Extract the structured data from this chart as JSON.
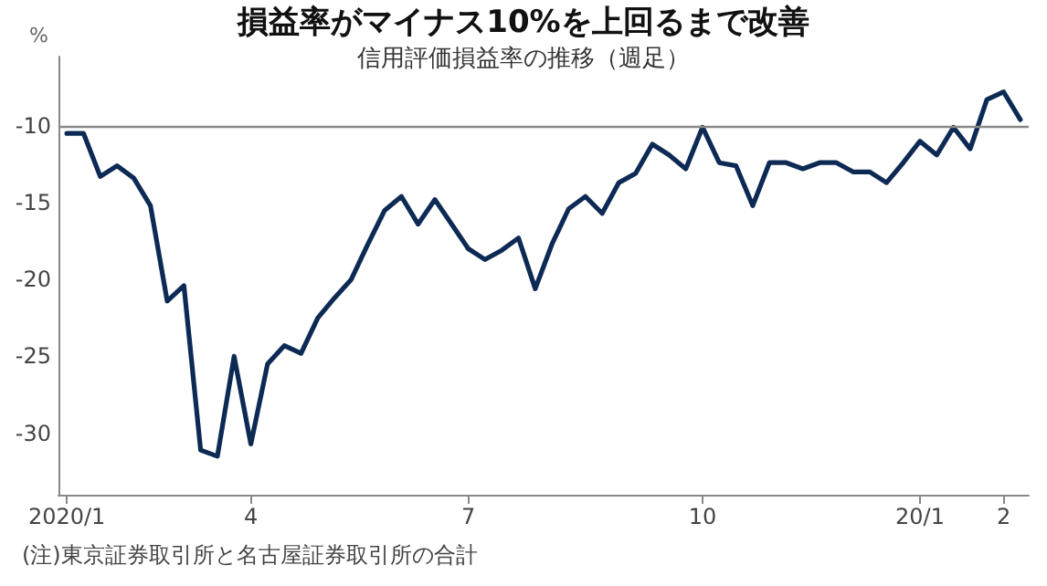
{
  "chart_data": {
    "type": "line",
    "title": "損益率がマイナス10%を上回るまで改善",
    "subtitle": "信用評価損益率の推移（週足）",
    "ylabel": "%",
    "annotations": [
      "(注)東京証券取引所と名古屋証券取引所の合計"
    ],
    "categories": [
      "2020/1",
      null,
      null,
      null,
      null,
      null,
      null,
      null,
      null,
      null,
      null,
      "4",
      null,
      null,
      null,
      null,
      null,
      null,
      null,
      null,
      null,
      null,
      null,
      null,
      "7",
      null,
      null,
      null,
      null,
      null,
      null,
      null,
      null,
      null,
      null,
      null,
      null,
      null,
      "10",
      null,
      null,
      null,
      null,
      null,
      null,
      null,
      null,
      null,
      null,
      null,
      null,
      "20/1",
      null,
      null,
      null,
      null,
      "2",
      null
    ],
    "series": [
      {
        "color": "#0d2a55",
        "values": [
          -10.5,
          -10.5,
          -13.3,
          -12.6,
          -13.4,
          -15.2,
          -21.4,
          -20.4,
          -31.1,
          -31.5,
          -25.0,
          -30.7,
          -25.5,
          -24.3,
          -24.8,
          -22.5,
          -21.2,
          -20.0,
          -17.7,
          -15.5,
          -14.6,
          -16.4,
          -14.8,
          -16.4,
          -18.0,
          -18.7,
          -18.1,
          -17.3,
          -20.6,
          -17.7,
          -15.4,
          -14.6,
          -15.7,
          -13.7,
          -13.1,
          -11.2,
          -11.9,
          -12.8,
          -10.1,
          -12.4,
          -12.6,
          -15.2,
          -12.4,
          -12.4,
          -12.8,
          -12.4,
          -12.4,
          -13.0,
          -13.0,
          -13.7,
          -12.4,
          -11.0,
          -11.9,
          -10.1,
          -11.5,
          -8.3,
          -7.8,
          -9.6
        ]
      }
    ],
    "ylim": [
      -34,
      -5.5
    ],
    "yticks": [
      -30,
      -25,
      -20,
      -15,
      -10
    ],
    "ref_lines": [
      {
        "axis": "y",
        "value": -10,
        "color": "#888888"
      }
    ],
    "grid": false,
    "marker": "none",
    "line_style": "solid"
  }
}
